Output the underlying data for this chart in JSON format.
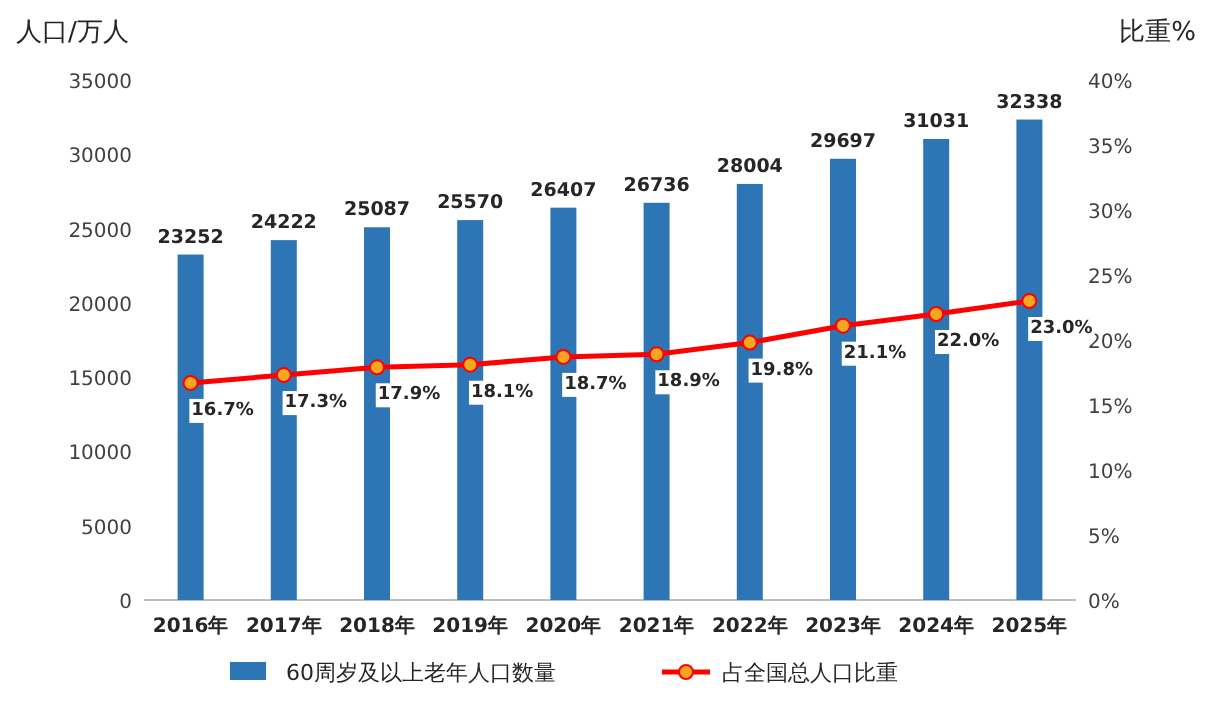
{
  "chart_data": {
    "type": "bar",
    "ylabel": "人口/万人",
    "y2label": "比重%",
    "categories": [
      "2016年",
      "2017年",
      "2018年",
      "2019年",
      "2020年",
      "2021年",
      "2022年",
      "2023年",
      "2024年",
      "2025年"
    ],
    "series": [
      {
        "name": "60周岁及以上老年人口数量",
        "color": "#2e75b6",
        "values": [
          23252,
          24222,
          25087,
          25570,
          26407,
          26736,
          28004,
          29697,
          31031,
          32338
        ],
        "value_labels": [
          "23252",
          "24222",
          "25087",
          "25570",
          "26407",
          "26736",
          "28004",
          "29697",
          "31031",
          "32338"
        ]
      },
      {
        "name": "占全国总人口比重",
        "type": "line",
        "axis": "y2",
        "color": "#ff0000",
        "marker": "circle",
        "values": [
          16.7,
          17.3,
          17.9,
          18.1,
          18.7,
          18.9,
          19.8,
          21.1,
          22.0,
          23.0
        ],
        "value_labels": [
          "16.7%",
          "17.3%",
          "17.9%",
          "18.1%",
          "18.7%",
          "18.9%",
          "19.8%",
          "21.1%",
          "22.0%",
          "23.0%"
        ]
      }
    ],
    "ylim": [
      0,
      35000
    ],
    "yticks": [
      0,
      5000,
      10000,
      15000,
      20000,
      25000,
      30000,
      35000
    ],
    "y2lim": [
      0,
      40
    ],
    "y2ticks": [
      {
        "value": 0,
        "label": "0%"
      },
      {
        "value": 5,
        "label": "5%"
      },
      {
        "value": 10,
        "label": "10%"
      },
      {
        "value": 15,
        "label": "15%"
      },
      {
        "value": 20,
        "label": "20%"
      },
      {
        "value": 25,
        "label": "25%"
      },
      {
        "value": 30,
        "label": "30%"
      },
      {
        "value": 35,
        "label": "35%"
      },
      {
        "value": 40,
        "label": "40%"
      }
    ],
    "legend": "bottom",
    "grid": false
  }
}
